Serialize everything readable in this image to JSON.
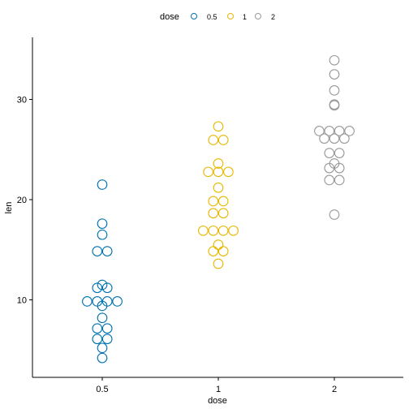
{
  "chart_data": {
    "type": "scatter",
    "subtype": "dotplot",
    "title": "",
    "xlabel": "dose",
    "ylabel": "len",
    "categories": [
      "0.5",
      "1",
      "2"
    ],
    "ylim": [
      2,
      36
    ],
    "yticks": [
      10,
      20,
      30
    ],
    "grid": false,
    "legend": {
      "title": "dose",
      "position": "top",
      "entries": [
        "0.5",
        "1",
        "2"
      ]
    },
    "colors": {
      "0.5": "#0072B2",
      "1": "#E7B800",
      "2": "#999999"
    },
    "series": [
      {
        "name": "0.5",
        "x": "0.5",
        "values": [
          4.2,
          5.2,
          5.8,
          6.4,
          7.0,
          7.3,
          8.2,
          9.4,
          9.7,
          9.7,
          10.0,
          10.0,
          11.2,
          11.2,
          11.5,
          14.5,
          15.2,
          16.5,
          17.6,
          21.5
        ]
      },
      {
        "name": "1",
        "x": "1",
        "values": [
          13.6,
          14.5,
          15.2,
          15.5,
          16.5,
          16.5,
          17.3,
          17.3,
          18.5,
          18.8,
          19.7,
          20.0,
          21.2,
          22.5,
          22.5,
          23.3,
          23.6,
          25.5,
          26.4,
          27.3
        ]
      },
      {
        "name": "2",
        "x": "2",
        "values": [
          18.5,
          21.5,
          22.4,
          23.0,
          23.3,
          23.6,
          24.5,
          24.8,
          25.5,
          26.4,
          26.4,
          26.7,
          26.7,
          27.3,
          29.4,
          29.5,
          30.9,
          32.5,
          33.9,
          26.7
        ]
      }
    ]
  }
}
